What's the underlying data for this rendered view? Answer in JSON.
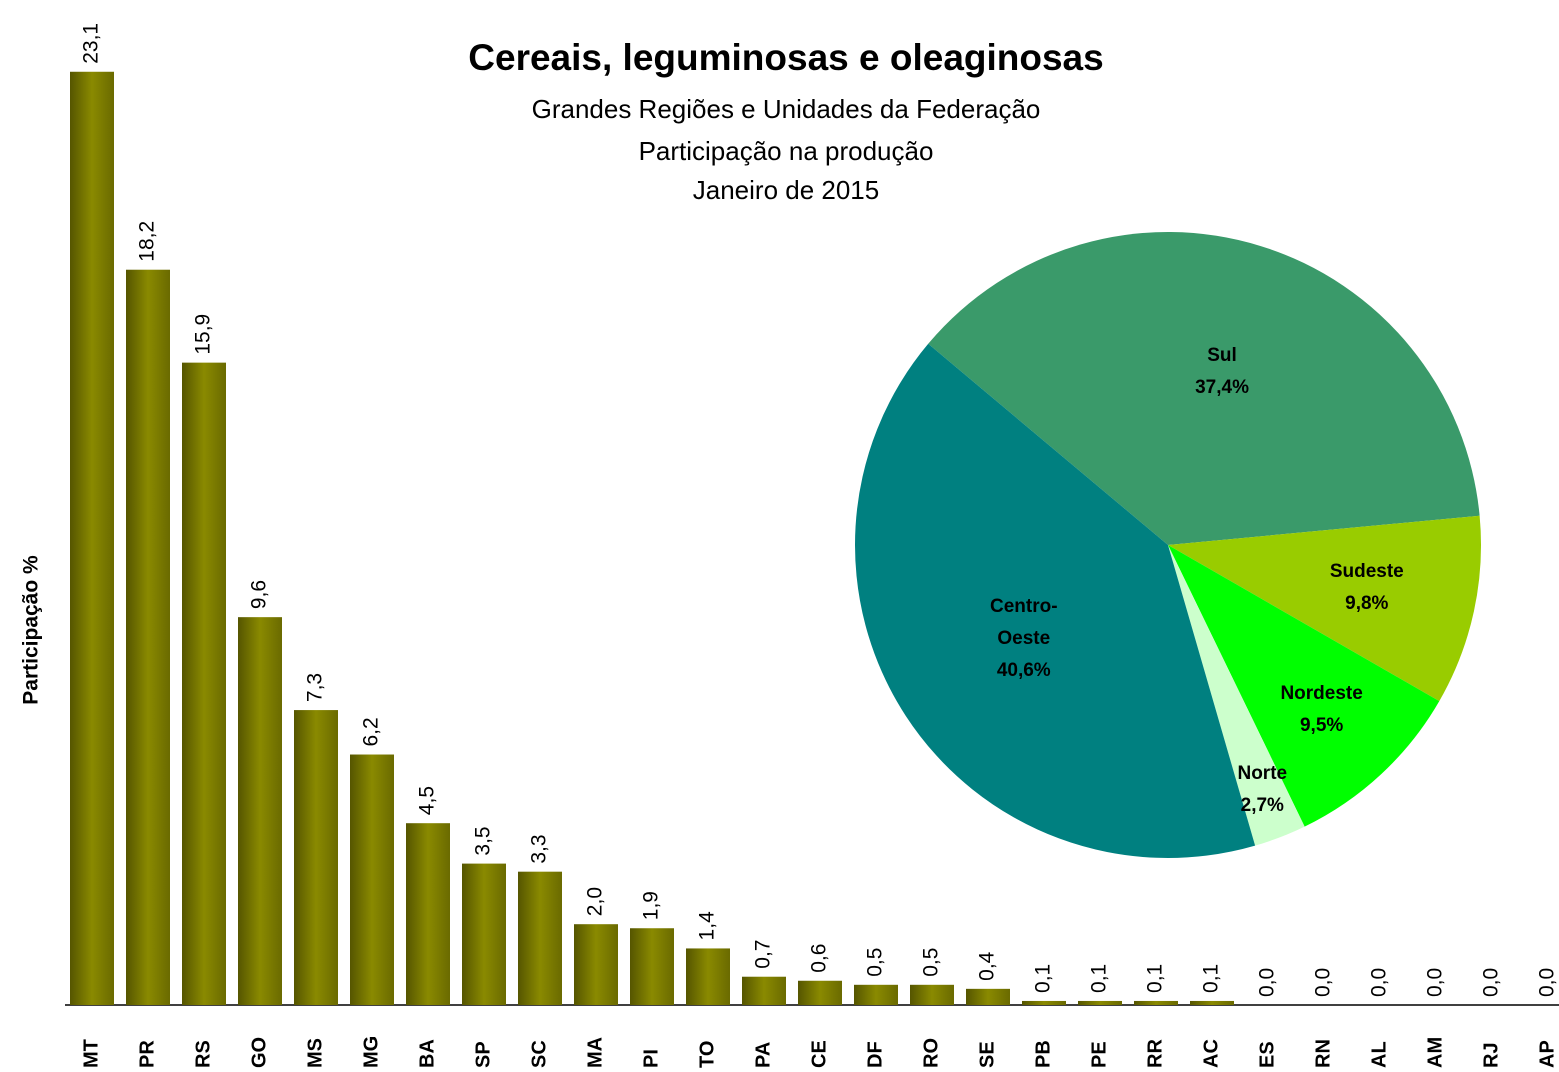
{
  "chart_data": [
    {
      "type": "bar",
      "title": "Cereais, leguminosas e oleaginosas",
      "subtitle": [
        "Grandes Regiões e Unidades da Federação",
        "Participação na produção",
        "Janeiro de 2015"
      ],
      "y_label": "Participação %",
      "categories": [
        "MT",
        "PR",
        "RS",
        "GO",
        "MS",
        "MG",
        "BA",
        "SP",
        "SC",
        "MA",
        "PI",
        "TO",
        "PA",
        "CE",
        "DF",
        "RO",
        "SE",
        "PB",
        "PE",
        "RR",
        "AC",
        "ES",
        "RN",
        "AL",
        "AM",
        "RJ",
        "AP"
      ],
      "values": [
        23.1,
        18.2,
        15.9,
        9.6,
        7.3,
        6.2,
        4.5,
        3.5,
        3.3,
        2.0,
        1.9,
        1.4,
        0.7,
        0.6,
        0.5,
        0.5,
        0.4,
        0.1,
        0.1,
        0.1,
        0.1,
        0.0,
        0.0,
        0.0,
        0.0,
        0.0,
        0.0
      ],
      "value_labels": [
        "23,1",
        "18,2",
        "15,9",
        "9,6",
        "7,3",
        "6,2",
        "4,5",
        "3,5",
        "3,3",
        "2,0",
        "1,9",
        "1,4",
        "0,7",
        "0,6",
        "0,5",
        "0,5",
        "0,4",
        "0,1",
        "0,1",
        "0,1",
        "0,1",
        "0,0",
        "0,0",
        "0,0",
        "0,0",
        "0,0",
        "0,0"
      ],
      "color": "#808000",
      "ylim": [
        0,
        25
      ]
    },
    {
      "type": "pie",
      "categories": [
        "Sul",
        "Sudeste",
        "Nordeste",
        "Norte",
        "Centro-Oeste"
      ],
      "values": [
        37.4,
        9.8,
        9.5,
        2.7,
        40.6
      ],
      "value_labels": [
        "37,4%",
        "9,8%",
        "9,5%",
        "2,7%",
        "40,6%"
      ],
      "colors": [
        "#3a9a6a",
        "#99cc00",
        "#00ff00",
        "#ccffcc",
        "#008080"
      ]
    }
  ]
}
